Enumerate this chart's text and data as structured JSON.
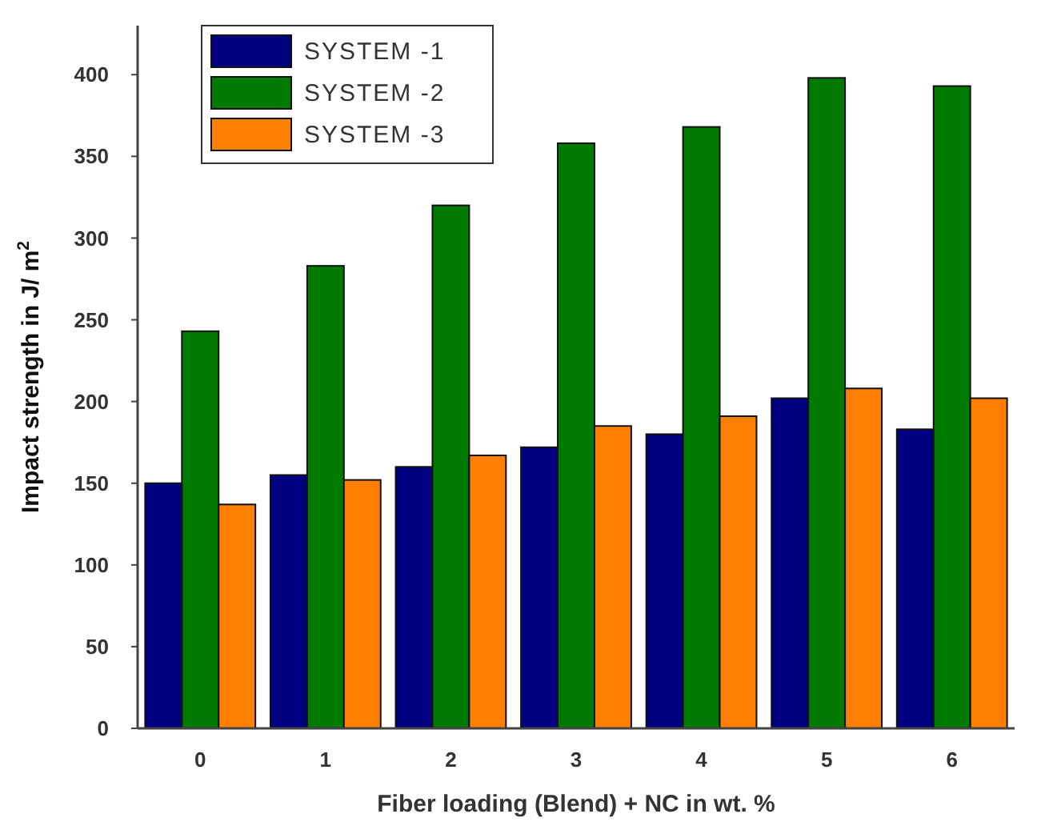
{
  "chart_data": {
    "type": "bar",
    "xlabel": "Fiber loading (Blend) + NC in wt. %",
    "ylabel": "Impact strength in J/ m$^{2}$",
    "categories": [
      "0",
      "1",
      "2",
      "3",
      "4",
      "5",
      "6"
    ],
    "series": [
      {
        "name": "SYSTEM -1",
        "color": "#000080",
        "values": [
          150,
          155,
          160,
          172,
          180,
          202,
          183
        ]
      },
      {
        "name": "SYSTEM -2",
        "color": "#007a00",
        "values": [
          243,
          283,
          320,
          358,
          368,
          398,
          393
        ]
      },
      {
        "name": "SYSTEM -3",
        "color": "#ff8000",
        "values": [
          137,
          152,
          167,
          185,
          191,
          208,
          202
        ]
      }
    ],
    "ylim": [
      0,
      430
    ],
    "yticks": [
      0,
      50,
      100,
      150,
      200,
      250,
      300,
      350,
      400
    ],
    "legend": "top left",
    "grid": false
  }
}
